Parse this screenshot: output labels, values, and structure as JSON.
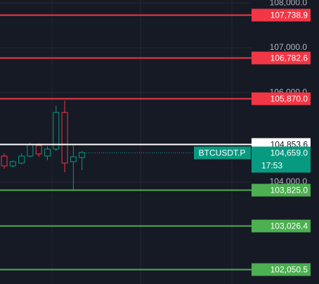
{
  "chart_data": {
    "type": "candlestick",
    "ylim": [
      101720.9,
      108068.9
    ],
    "yticks": [
      {
        "value": 104000,
        "label": "104,000.0"
      },
      {
        "value": 106000,
        "label": "106,000.0"
      },
      {
        "value": 107000,
        "label": "107,000.0"
      },
      {
        "value": 108000,
        "label": "108,000.0"
      }
    ],
    "candles": {
      "open": [
        104580,
        104360,
        104423,
        104580,
        104816,
        104580,
        104737,
        105555,
        104455,
        104549
      ],
      "high": [
        104643,
        104486,
        104643,
        104879,
        104863,
        104800,
        105712,
        105822,
        104847,
        104690
      ],
      "low": [
        104298,
        104330,
        104392,
        104549,
        104565,
        104486,
        104690,
        104219,
        103826,
        104266
      ],
      "close": [
        104360,
        104455,
        104580,
        104832,
        104627,
        104737,
        105555,
        104423,
        104565,
        104659
      ]
    },
    "up_color": "#089981",
    "down_color": "#f23645",
    "levels": [
      {
        "value": 107738.9,
        "label": "107,738.9",
        "color": "#f23645"
      },
      {
        "value": 106782.6,
        "label": "106,782.6",
        "color": "#f23645"
      },
      {
        "value": 105870.0,
        "label": "105,870.0",
        "color": "#f23645"
      },
      {
        "value": 104853.6,
        "label": "104,853.6",
        "color": "#ffffff"
      },
      {
        "value": 103825.0,
        "label": "103,825.0",
        "color": "#4caf50"
      },
      {
        "value": 103026.4,
        "label": "103,026.4",
        "color": "#4caf50"
      },
      {
        "value": 102050.5,
        "label": "102,050.5",
        "color": "#4caf50"
      }
    ],
    "current_price": {
      "value": 104659.0,
      "label": "104,659.0",
      "symbol": "BTCUSDT.P",
      "countdown": "17:53",
      "color": "#089981"
    }
  }
}
